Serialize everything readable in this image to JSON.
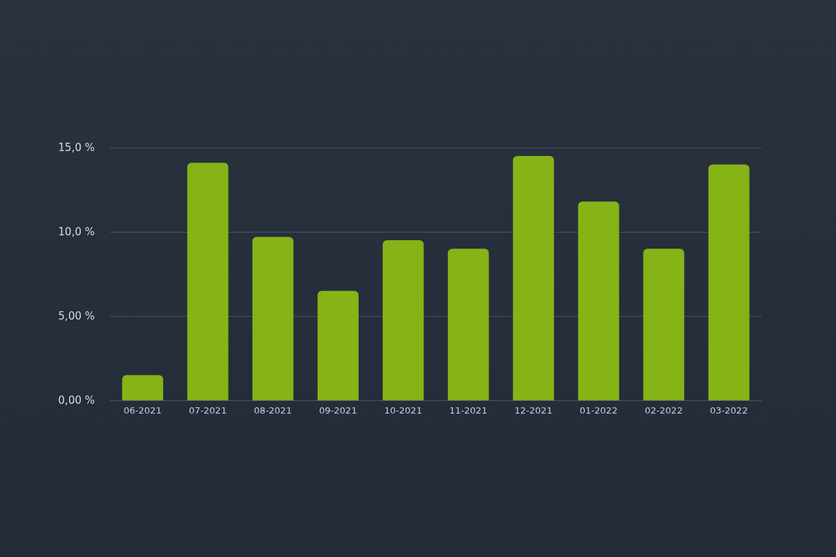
{
  "chart_data": {
    "type": "bar",
    "categories": [
      "06-2021",
      "07-2021",
      "08-2021",
      "09-2021",
      "10-2021",
      "11-2021",
      "12-2021",
      "01-2022",
      "02-2022",
      "03-2022"
    ],
    "values": [
      1.5,
      14.1,
      9.7,
      6.5,
      9.5,
      9.0,
      14.5,
      11.8,
      9.0,
      14.0
    ],
    "color": "#86b316",
    "ylim": [
      0,
      15
    ],
    "yticks": [
      {
        "value": 0,
        "label": "0,00 %"
      },
      {
        "value": 5,
        "label": "5,00 %"
      },
      {
        "value": 10,
        "label": "10,0 %"
      },
      {
        "value": 15,
        "label": "15,0 %"
      }
    ],
    "grid": "y"
  }
}
